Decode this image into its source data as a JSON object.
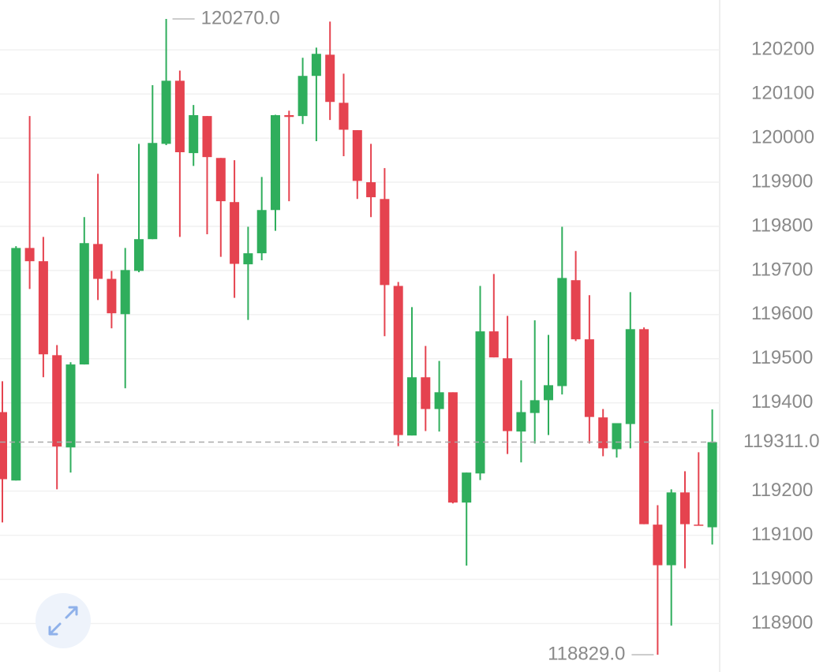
{
  "chart_data": {
    "type": "candlestick",
    "open": [
      119379,
      119224,
      119751,
      119721,
      119508,
      119299,
      119487,
      119760,
      119681,
      119601,
      119699,
      119771,
      119987,
      120130,
      119966,
      120050,
      119955,
      119855,
      119714,
      119739,
      119837,
      120052,
      120050,
      120141,
      120189,
      120080,
      120018,
      119900,
      119862,
      119665,
      119326,
      119458,
      119386,
      119424,
      119174,
      119240,
      119562,
      119501,
      119335,
      119377,
      119406,
      119438,
      119678,
      119544,
      119367,
      119295,
      119352,
      119567,
      119124,
      119032,
      119197,
      119124,
      119118
    ],
    "high": [
      119449,
      119755,
      120050,
      119776,
      119531,
      119492,
      119821,
      119919,
      119699,
      119751,
      119987,
      120120,
      120270,
      120153,
      120075,
      120050,
      119955,
      119950,
      119799,
      119912,
      120053,
      120062,
      120182,
      120205,
      120264,
      120146,
      120018,
      119987,
      119932,
      119674,
      119617,
      119529,
      119495,
      119424,
      119242,
      119665,
      119692,
      119597,
      119451,
      119587,
      119554,
      119799,
      119744,
      119644,
      119386,
      119354,
      119651,
      119571,
      119168,
      119204,
      119245,
      119288,
      119385
    ],
    "low": [
      119129,
      119224,
      119658,
      119458,
      119204,
      119242,
      119487,
      119633,
      119569,
      119433,
      119696,
      119771,
      119984,
      119776,
      119937,
      119782,
      119731,
      119638,
      119588,
      119723,
      119790,
      119857,
      120032,
      119993,
      120041,
      119959,
      119862,
      119821,
      119551,
      119302,
      119326,
      119336,
      119335,
      119172,
      119031,
      119225,
      119503,
      119284,
      119265,
      119308,
      119327,
      119419,
      119540,
      119308,
      119279,
      119276,
      119297,
      119125,
      118829,
      118895,
      119025,
      119122,
      119079
    ],
    "close": [
      119227,
      119751,
      119721,
      119510,
      119301,
      119487,
      119762,
      119681,
      119603,
      119701,
      119771,
      119989,
      120130,
      119968,
      120052,
      119957,
      119857,
      119715,
      119739,
      119837,
      120052,
      120048,
      120141,
      120191,
      120082,
      120019,
      119903,
      119866,
      119667,
      119327,
      119458,
      119386,
      119424,
      119174,
      119242,
      119562,
      119503,
      119336,
      119379,
      119406,
      119440,
      119683,
      119544,
      119368,
      119297,
      119354,
      119567,
      119125,
      119032,
      119197,
      119125,
      119122,
      119311
    ],
    "up_color": "#2fae5c",
    "down_color": "#e5434f",
    "ylim": [
      118790,
      120313
    ],
    "yticks": [
      118900,
      119000,
      119100,
      119200,
      119300,
      119400,
      119500,
      119600,
      119700,
      119800,
      119900,
      120000,
      120100,
      120200
    ],
    "grid": true,
    "max_label": {
      "value": 120270,
      "label": "120270.0"
    },
    "min_label": {
      "value": 118829,
      "label": "118829.0"
    },
    "last_price": {
      "value": 119311,
      "label": "119311.0"
    }
  }
}
